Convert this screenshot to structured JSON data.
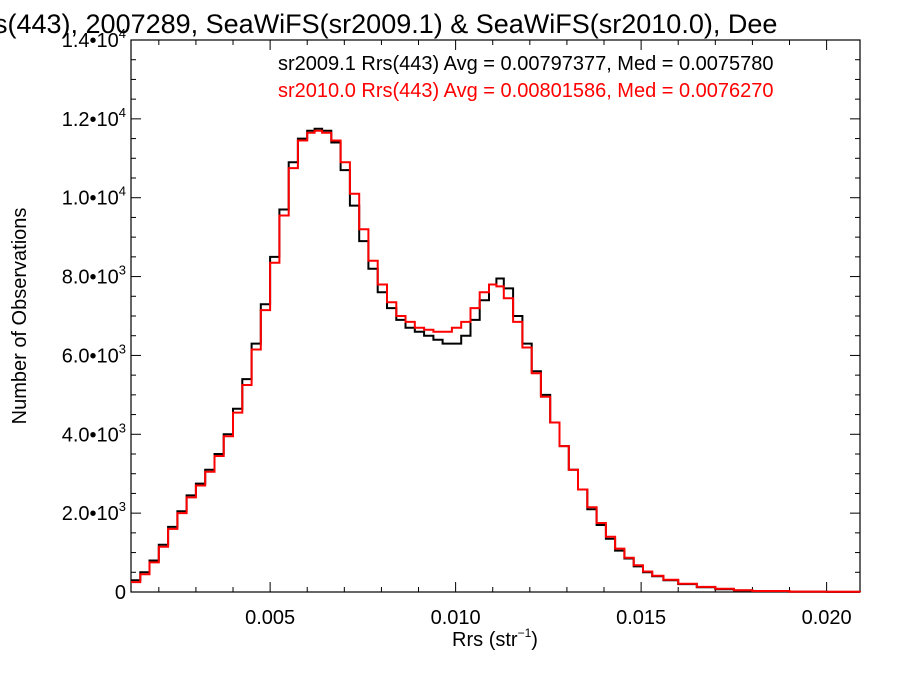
{
  "chart_data": {
    "type": "line",
    "title": "s(443), 2007289, SeaWiFS(sr2009.1) & SeaWiFS(sr2010.0), Dee",
    "xlabel_main": "Rrs (str",
    "xlabel_sup": "−1",
    "xlabel_tail": ")",
    "ylabel": "Number of Observations",
    "xlim": [
      0.00125,
      0.0209
    ],
    "ylim": [
      0,
      14000
    ],
    "xticks": [
      {
        "value": 0.005,
        "label": "0.005"
      },
      {
        "value": 0.01,
        "label": "0.010"
      },
      {
        "value": 0.015,
        "label": "0.015"
      },
      {
        "value": 0.02,
        "label": "0.020"
      }
    ],
    "yticks": [
      {
        "value": 0,
        "mant": "0",
        "exp": ""
      },
      {
        "value": 2000,
        "mant": "2.0•10",
        "exp": "3"
      },
      {
        "value": 4000,
        "mant": "4.0•10",
        "exp": "3"
      },
      {
        "value": 6000,
        "mant": "6.0•10",
        "exp": "3"
      },
      {
        "value": 8000,
        "mant": "8.0•10",
        "exp": "3"
      },
      {
        "value": 10000,
        "mant": "1.0•10",
        "exp": "4"
      },
      {
        "value": 12000,
        "mant": "1.2•10",
        "exp": "4"
      },
      {
        "value": 14000,
        "mant": "1.4•10",
        "exp": "4"
      }
    ],
    "legend_placement": "top-right",
    "series": [
      {
        "name": "sr2009.1 Rrs(443) Avg = 0.00797377, Med = 0.0075780",
        "color": "#000000",
        "x": [
          0.00125,
          0.0015,
          0.00175,
          0.002,
          0.00225,
          0.0025,
          0.00275,
          0.003,
          0.00325,
          0.0035,
          0.00375,
          0.004,
          0.00425,
          0.0045,
          0.00475,
          0.005,
          0.00525,
          0.0055,
          0.00575,
          0.006,
          0.0062,
          0.0064,
          0.00665,
          0.0069,
          0.00715,
          0.0074,
          0.00765,
          0.0079,
          0.00815,
          0.0084,
          0.00865,
          0.0089,
          0.00915,
          0.0094,
          0.00965,
          0.0099,
          0.01015,
          0.0104,
          0.01065,
          0.0109,
          0.0111,
          0.0113,
          0.01155,
          0.0118,
          0.01205,
          0.0123,
          0.01255,
          0.0128,
          0.01305,
          0.0133,
          0.01355,
          0.0138,
          0.01405,
          0.0143,
          0.01455,
          0.0148,
          0.01505,
          0.0153,
          0.0156,
          0.016,
          0.0165,
          0.017,
          0.0175,
          0.018,
          0.019,
          0.02,
          0.0209
        ],
        "values": [
          300,
          500,
          800,
          1200,
          1650,
          2050,
          2450,
          2750,
          3100,
          3500,
          4000,
          4650,
          5400,
          6300,
          7300,
          8500,
          9700,
          10900,
          11500,
          11700,
          11750,
          11700,
          11400,
          10700,
          9800,
          8900,
          8200,
          7600,
          7200,
          6900,
          6700,
          6600,
          6500,
          6400,
          6300,
          6300,
          6500,
          6900,
          7400,
          7800,
          7950,
          7700,
          7000,
          6300,
          5600,
          5000,
          4300,
          3700,
          3100,
          2600,
          2100,
          1700,
          1350,
          1050,
          850,
          650,
          500,
          400,
          300,
          200,
          120,
          70,
          40,
          20,
          8,
          3,
          2
        ]
      },
      {
        "name": "sr2010.0 Rrs(443) Avg = 0.00801586, Med = 0.0076270",
        "color": "#ff0000",
        "x": [
          0.00125,
          0.0015,
          0.00175,
          0.002,
          0.00225,
          0.0025,
          0.00275,
          0.003,
          0.00325,
          0.0035,
          0.00375,
          0.004,
          0.00425,
          0.0045,
          0.00475,
          0.005,
          0.00525,
          0.0055,
          0.00575,
          0.006,
          0.0062,
          0.0064,
          0.00665,
          0.0069,
          0.00715,
          0.0074,
          0.00765,
          0.0079,
          0.00815,
          0.0084,
          0.00865,
          0.0089,
          0.00915,
          0.0094,
          0.00965,
          0.0099,
          0.01015,
          0.0104,
          0.01065,
          0.0109,
          0.0111,
          0.0113,
          0.01155,
          0.0118,
          0.01205,
          0.0123,
          0.01255,
          0.0128,
          0.01305,
          0.0133,
          0.01355,
          0.0138,
          0.01405,
          0.0143,
          0.01455,
          0.0148,
          0.01505,
          0.0153,
          0.0156,
          0.016,
          0.0165,
          0.017,
          0.0175,
          0.018,
          0.019,
          0.02,
          0.0209
        ],
        "values": [
          250,
          450,
          750,
          1150,
          1600,
          2000,
          2400,
          2700,
          3050,
          3450,
          3950,
          4550,
          5250,
          6150,
          7150,
          8350,
          9550,
          10750,
          11450,
          11650,
          11700,
          11650,
          11450,
          10900,
          10100,
          9200,
          8400,
          7800,
          7350,
          7000,
          6850,
          6700,
          6650,
          6600,
          6600,
          6700,
          6850,
          7200,
          7600,
          7800,
          7750,
          7450,
          6850,
          6200,
          5550,
          4950,
          4300,
          3700,
          3100,
          2600,
          2150,
          1750,
          1400,
          1100,
          870,
          680,
          520,
          410,
          310,
          210,
          130,
          80,
          45,
          25,
          10,
          4,
          2
        ]
      }
    ]
  }
}
